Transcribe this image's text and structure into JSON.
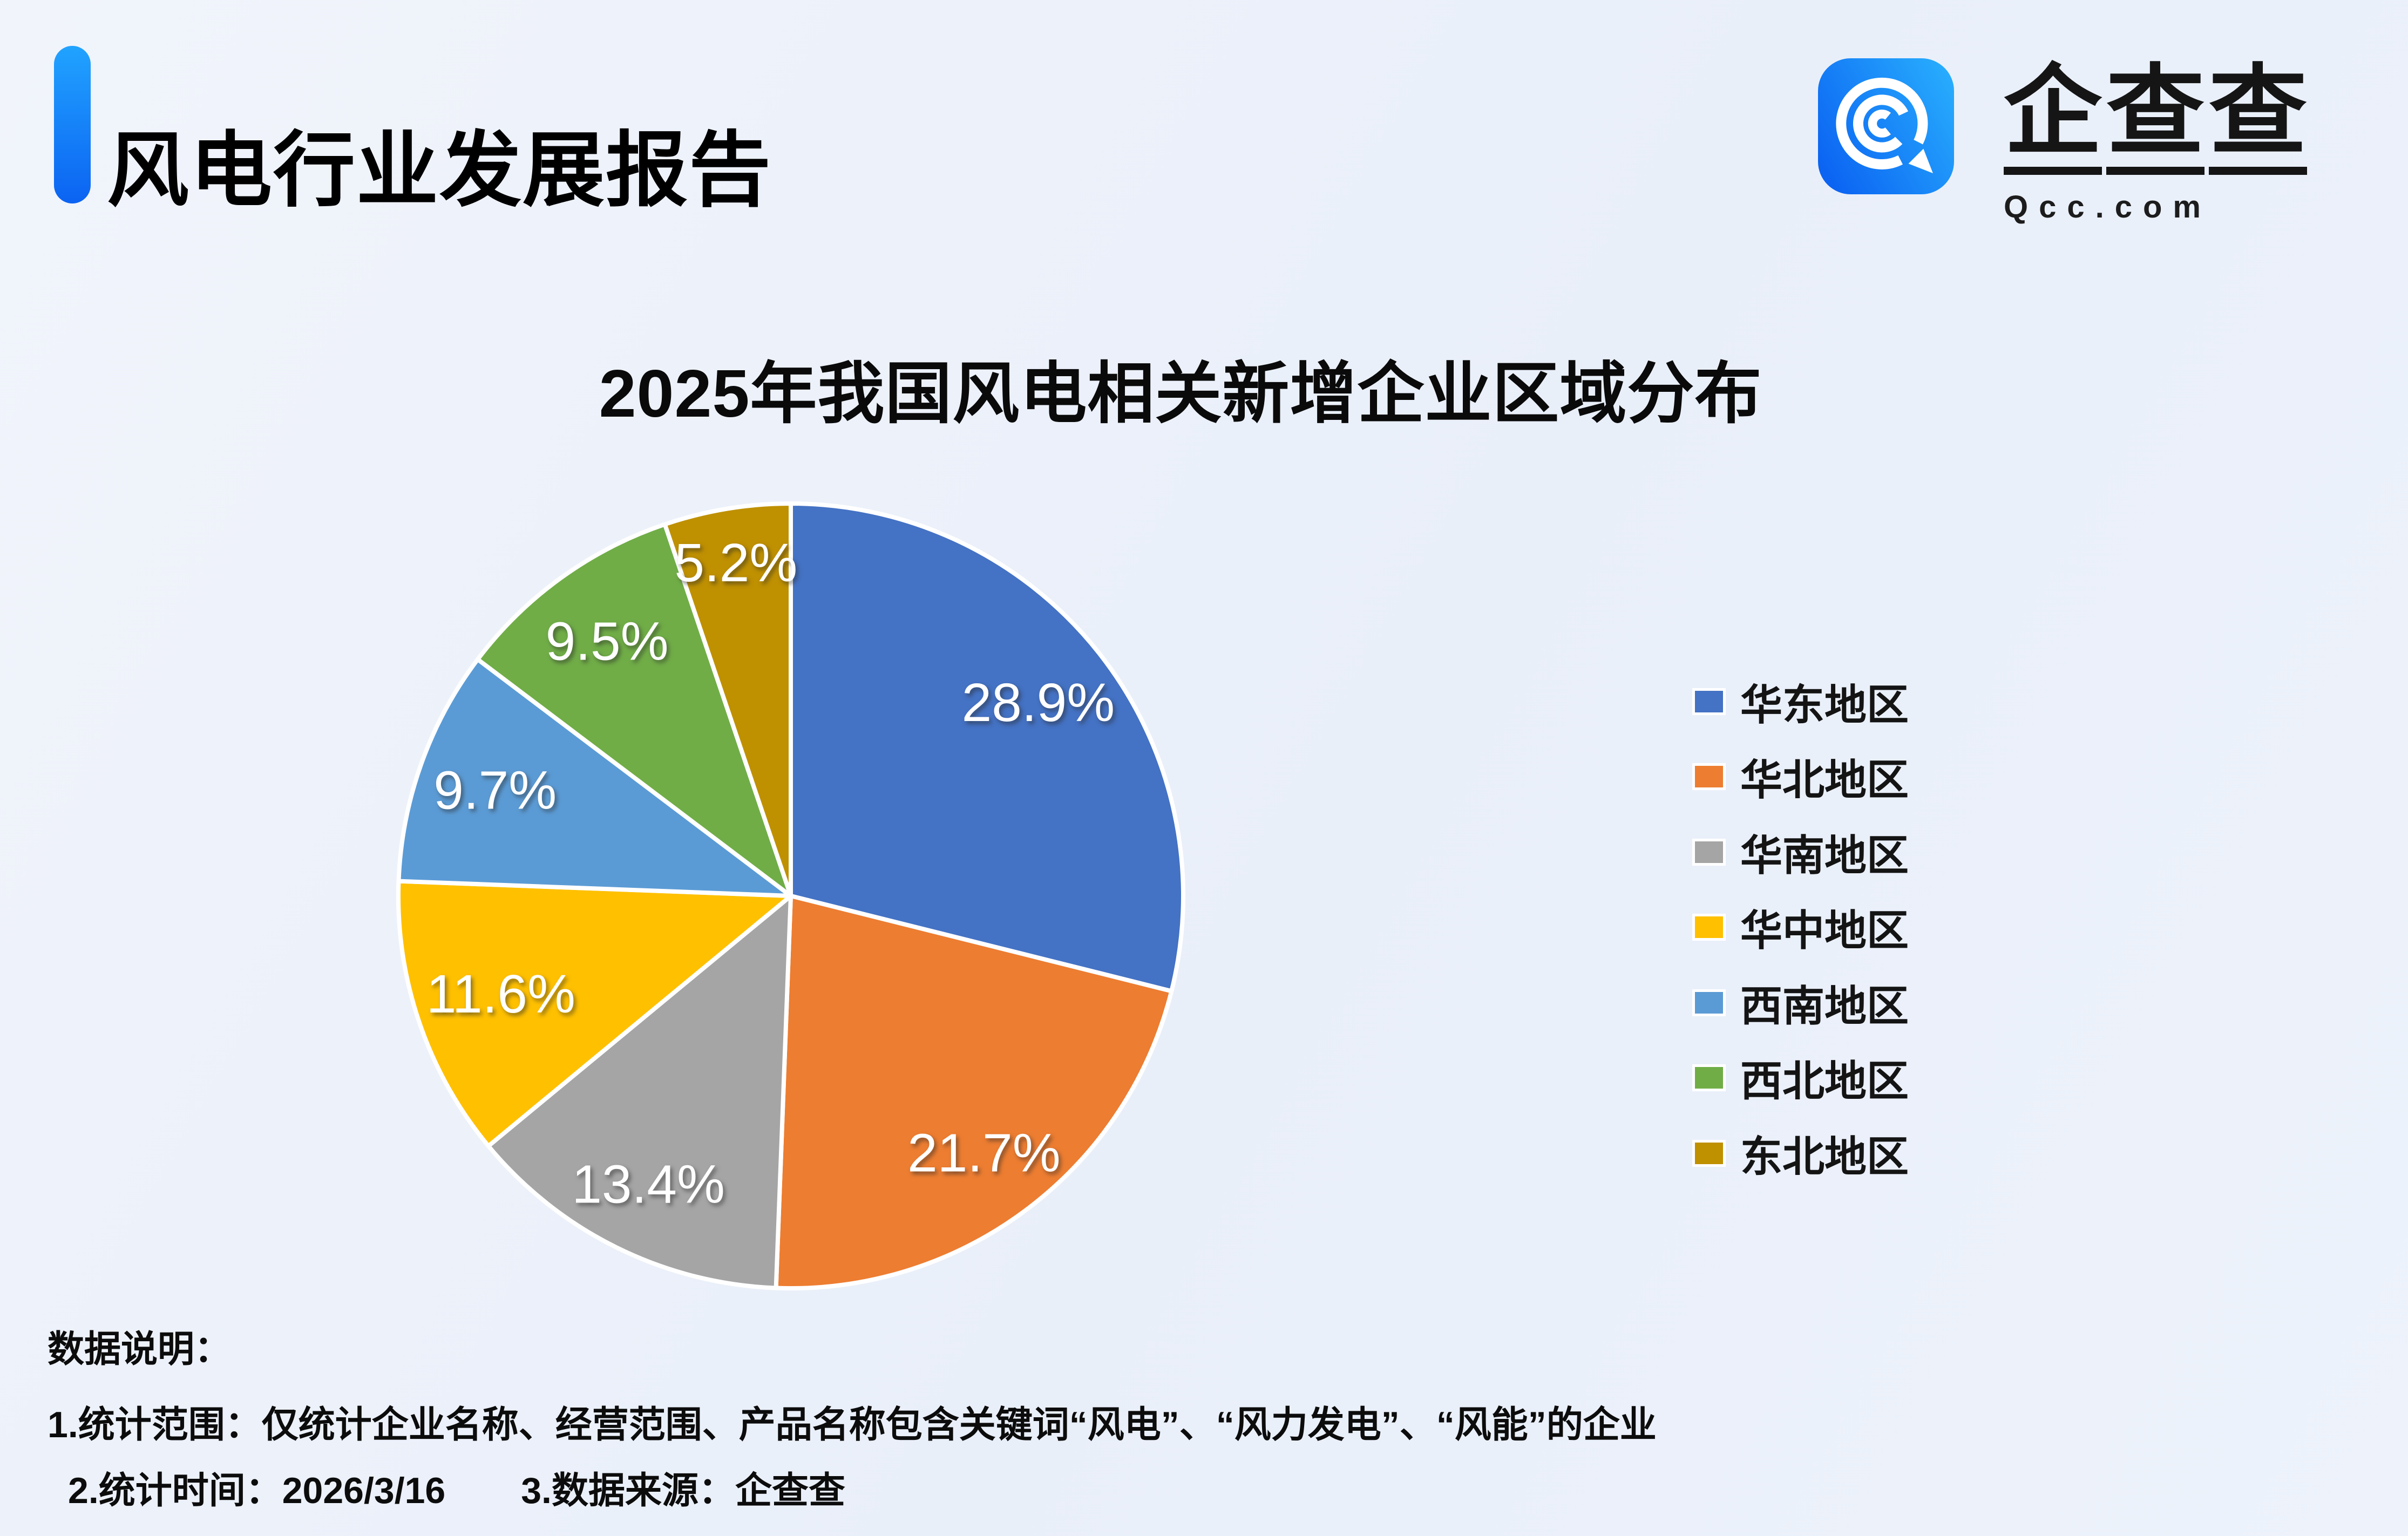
{
  "header": {
    "report_title": "风电行业发展报告",
    "accent_color_top": "#21A3FF",
    "accent_color_bottom": "#0B63F2"
  },
  "logo": {
    "brand_name": "企查查",
    "brand_chars": [
      "企",
      "查",
      "查"
    ],
    "domain": "Qcc.com",
    "icon": "qcc-q-spiral-icon",
    "icon_gradient_left": "#0B63F2",
    "icon_gradient_right": "#27ABFD"
  },
  "chart_data": {
    "type": "pie",
    "title": "2025年我国风电相关新增企业区域分布",
    "unit": "%",
    "start_angle_deg": 0,
    "direction": "clockwise",
    "legend_position": "right",
    "label_color": "#FFFFFF",
    "slices": [
      {
        "label": "华东地区",
        "value": 28.9,
        "display": "28.9%",
        "color": "#4472C4"
      },
      {
        "label": "华北地区",
        "value": 21.7,
        "display": "21.7%",
        "color": "#ED7D31"
      },
      {
        "label": "华南地区",
        "value": 13.4,
        "display": "13.4%",
        "color": "#A5A5A5"
      },
      {
        "label": "华中地区",
        "value": 11.6,
        "display": "11.6%",
        "color": "#FFC000"
      },
      {
        "label": "西南地区",
        "value": 9.7,
        "display": "9.7%",
        "color": "#5B9BD5"
      },
      {
        "label": "西北地区",
        "value": 9.5,
        "display": "9.5%",
        "color": "#70AD47"
      },
      {
        "label": "东北地区",
        "value": 5.2,
        "display": "5.2%",
        "color": "#BF9000"
      }
    ]
  },
  "notes": {
    "heading": "数据说明：",
    "note1": "1.统计范围：仅统计企业名称、经营范围、产品名称包含关键词“风电”、“风力发电”、“风能”的企业",
    "note2": "2.统计时间：2026/3/16",
    "note3": "3.数据来源：企查查"
  }
}
